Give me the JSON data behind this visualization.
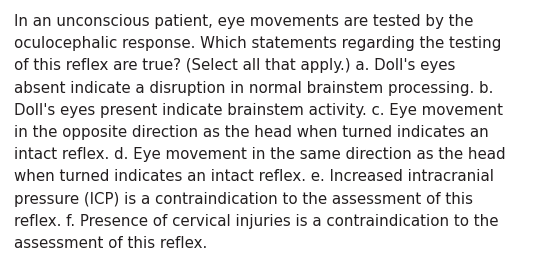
{
  "background_color": "#ffffff",
  "text_color": "#231f20",
  "font_size": 10.8,
  "font_family": "DejaVu Sans",
  "lines": [
    "In an unconscious patient, eye movements are tested by the",
    "oculocephalic response. Which statements regarding the testing",
    "of this reflex are true? (Select all that apply.) a. Doll's eyes",
    "absent indicate a disruption in normal brainstem processing. b.",
    "Doll's eyes present indicate brainstem activity. c. Eye movement",
    "in the opposite direction as the head when turned indicates an",
    "intact reflex. d. Eye movement in the same direction as the head",
    "when turned indicates an intact reflex. e. Increased intracranial",
    "pressure (ICP) is a contraindication to the assessment of this",
    "reflex. f. Presence of cervical injuries is a contraindication to the",
    "assessment of this reflex."
  ],
  "figsize": [
    5.58,
    2.72
  ],
  "dpi": 100
}
